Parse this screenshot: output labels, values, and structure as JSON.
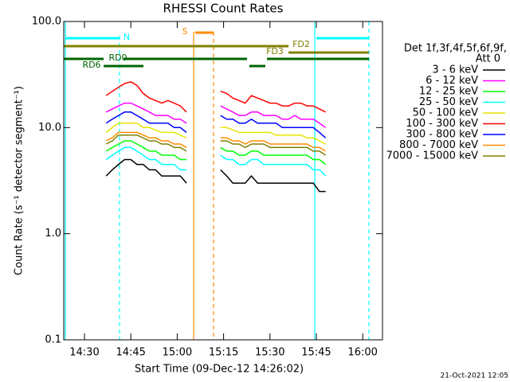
{
  "chart_data": {
    "type": "line",
    "title": "RHESSI Count Rates",
    "x_label": "Start Time (09-Dec-12 14:26:02)",
    "y_label": "Count Rate (s⁻¹ detector segment⁻¹)",
    "y_log": true,
    "ylim": [
      0.1,
      100
    ],
    "yticks": [
      {
        "value": 100,
        "label": "100.0"
      },
      {
        "value": 10,
        "label": "10.0"
      },
      {
        "value": 1,
        "label": "1.0"
      },
      {
        "value": 0.1,
        "label": "0.1"
      }
    ],
    "xlim": [
      23.3,
      126.4
    ],
    "xticks": [
      {
        "value": 30,
        "label": "14:30"
      },
      {
        "value": 45,
        "label": "14:45"
      },
      {
        "value": 60,
        "label": "15:00"
      },
      {
        "value": 75,
        "label": "15:15"
      },
      {
        "value": 90,
        "label": "15:30"
      },
      {
        "value": 105,
        "label": "15:45"
      },
      {
        "value": 120,
        "label": "16:00"
      }
    ],
    "legend_title": [
      "Det 1f,3f,4f,5f,6f,9f,",
      "Att 0"
    ],
    "flags": [
      "N",
      "S",
      "FD2",
      "FD3",
      "RD0",
      "RD6"
    ],
    "timestamp": "21-Oct-2021 12:05",
    "x": [
      37,
      39,
      41,
      43,
      45,
      47,
      49,
      51,
      53,
      55,
      57,
      59,
      61,
      63,
      69,
      74,
      76,
      78,
      80,
      82,
      84,
      86,
      88,
      90,
      92,
      94,
      96,
      98,
      100,
      102,
      104,
      106,
      108
    ],
    "series": [
      {
        "name": "3 - 6 keV",
        "color": "#000000",
        "values": [
          3.5,
          4,
          4.5,
          5,
          5,
          4.5,
          4.5,
          4,
          4,
          3.5,
          3.5,
          3.5,
          3.5,
          3,
          null,
          4,
          3.5,
          3,
          3,
          3,
          3.5,
          3,
          3,
          3,
          3,
          3,
          3,
          3,
          3,
          3,
          3,
          2.5,
          2.5
        ]
      },
      {
        "name": "6 - 12 keV",
        "color": "#ff00ff",
        "values": [
          14,
          15,
          16,
          17,
          17,
          16,
          15,
          14,
          13,
          13,
          13,
          12,
          12,
          11,
          null,
          16,
          15,
          14,
          13,
          13,
          14,
          14,
          13,
          13,
          13,
          12,
          12,
          13,
          12,
          12,
          12,
          11,
          10
        ]
      },
      {
        "name": "12 - 25 keV",
        "color": "#00ff00",
        "values": [
          6,
          6.5,
          7,
          7.5,
          7.5,
          7,
          6.5,
          6,
          6,
          5.5,
          5.5,
          5.5,
          5,
          5,
          null,
          6.5,
          6,
          6,
          5.5,
          5.5,
          6,
          6,
          5.5,
          5.5,
          5.5,
          5.5,
          5.5,
          5.5,
          5.5,
          5.5,
          5,
          5,
          4.5
        ]
      },
      {
        "name": "25 - 50 keV",
        "color": "#00ffff",
        "values": [
          5,
          5.5,
          6,
          6.5,
          6.5,
          6,
          5.5,
          5,
          5,
          4.5,
          4.5,
          4.5,
          4,
          4,
          null,
          5.5,
          5,
          5,
          4.5,
          4.5,
          5,
          5,
          4.5,
          4.5,
          4.5,
          4.5,
          4.5,
          4.5,
          4.5,
          4.5,
          4,
          4,
          3.5
        ]
      },
      {
        "name": "50 - 100 keV",
        "color": "#e6e600",
        "values": [
          9,
          10,
          11,
          11,
          11,
          11,
          10,
          10,
          9.5,
          9,
          9,
          9,
          8.5,
          8,
          null,
          10,
          10,
          9.5,
          9,
          9,
          9,
          9,
          9,
          9,
          8.5,
          8.5,
          8.5,
          8.5,
          8.5,
          8,
          8,
          7.5,
          7
        ]
      },
      {
        "name": "100 - 300 keV",
        "color": "#ff0000",
        "values": [
          20,
          22,
          24,
          26,
          27,
          25,
          21,
          19,
          18,
          17,
          18,
          17,
          16,
          14,
          null,
          22,
          21,
          19,
          18,
          17,
          20,
          19,
          18,
          17,
          17,
          16,
          16,
          17,
          17,
          16,
          16,
          15,
          14
        ]
      },
      {
        "name": "300 - 800 keV",
        "color": "#0000ff",
        "values": [
          11,
          12,
          13,
          14,
          14,
          13,
          12,
          11,
          11,
          11,
          11,
          10,
          10,
          9,
          null,
          13,
          12,
          12,
          11,
          11,
          12,
          11,
          11,
          11,
          11,
          10,
          10,
          10,
          10,
          10,
          10,
          9,
          8
        ]
      },
      {
        "name": "800 - 7000 keV",
        "color": "#ff8c00",
        "values": [
          7.5,
          8,
          9,
          9,
          9,
          9,
          8.5,
          8,
          8,
          7.5,
          7.5,
          7,
          7,
          6.5,
          null,
          8,
          8,
          7.5,
          7.5,
          7,
          7.5,
          7.5,
          7.5,
          7,
          7,
          7,
          7,
          7,
          7,
          7,
          6.5,
          6.5,
          6
        ]
      },
      {
        "name": "7000 - 15000 keV",
        "color": "#808000",
        "values": [
          7,
          7.5,
          8.5,
          8.5,
          8.5,
          8.5,
          8,
          7.5,
          7.5,
          7,
          7,
          6.5,
          6.5,
          6,
          null,
          7.5,
          7.5,
          7,
          7,
          6.5,
          7,
          7,
          7,
          6.5,
          6.5,
          6.5,
          6.5,
          6.5,
          6.5,
          6.5,
          6,
          6,
          5.5
        ]
      }
    ]
  }
}
